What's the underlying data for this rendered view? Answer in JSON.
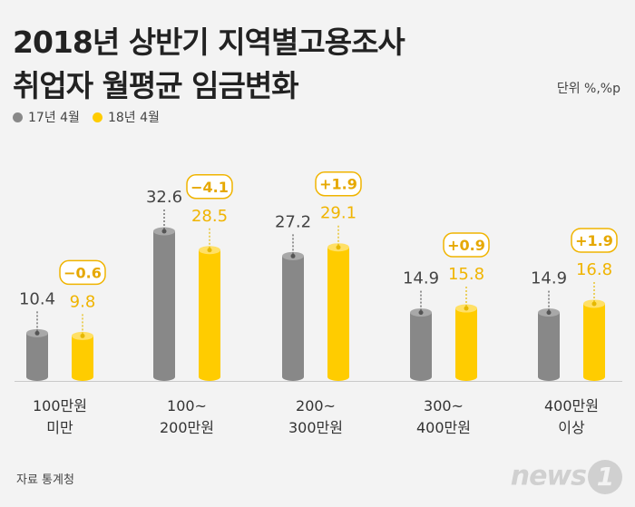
{
  "title_line1": "2018년 상반기 지역별고용조사",
  "title_line2": "취업자 월평균 임금변화",
  "unit": "단위 %,%p",
  "source": "자료 통계청",
  "logo": "news",
  "logo_mark": "1",
  "colors": {
    "series_2017": "#888888",
    "series_2018": "#ffcc00",
    "grid": "#c9c9c9"
  },
  "chart_data": {
    "type": "bar",
    "categories": [
      [
        "100만원",
        "미만"
      ],
      [
        "100~",
        "200만원"
      ],
      [
        "200~",
        "300만원"
      ],
      [
        "300~",
        "400만원"
      ],
      [
        "400만원",
        "이상"
      ]
    ],
    "series": [
      {
        "name": "17년 4월",
        "values": [
          10.4,
          32.6,
          27.2,
          14.9,
          14.9
        ],
        "labels": [
          "10.4",
          "32.6",
          "27.2",
          "14.9",
          "14.9"
        ]
      },
      {
        "name": "18년 4월",
        "values": [
          9.8,
          28.5,
          29.1,
          15.8,
          16.8
        ],
        "labels": [
          "9.8",
          "28.5",
          "29.1",
          "15.8",
          "16.8"
        ]
      }
    ],
    "changes": [
      "−0.6",
      "−4.1",
      "+1.9",
      "+0.9",
      "+1.9"
    ],
    "ylim": [
      0,
      32.6
    ]
  }
}
